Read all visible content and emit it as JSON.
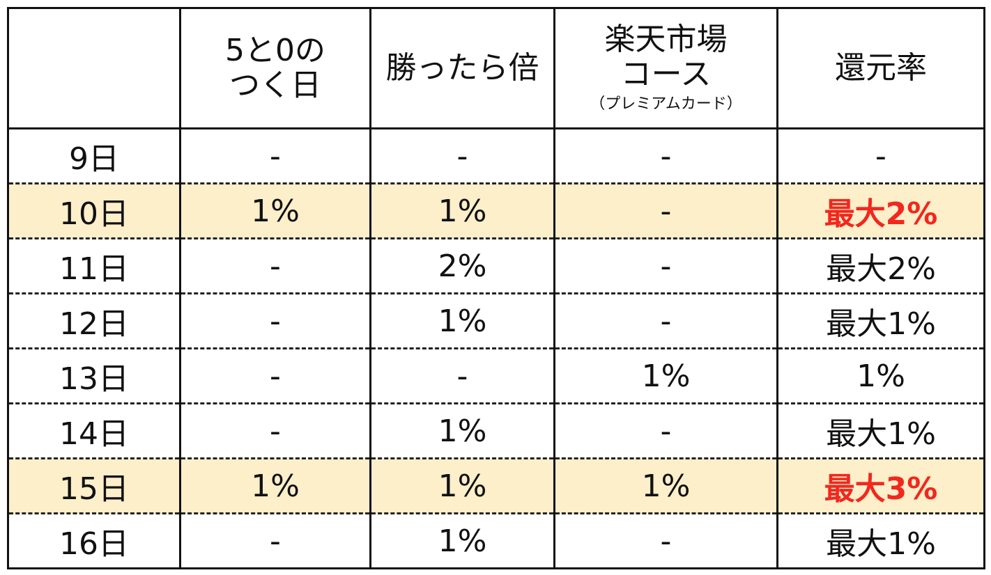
{
  "header": {
    "col0": "",
    "col1_line1": "5と0の",
    "col1_line2": "つく日",
    "col2": "勝ったら倍",
    "col3_line1": "楽天市場",
    "col3_line2": "コース",
    "col3_sub": "（プレミアムカード）",
    "col4": "還元率"
  },
  "highlight_color": "#fdefc9",
  "emphasis_color": "#f2271e",
  "rows": [
    {
      "day": "9日",
      "five_zero": "-",
      "win_double": "-",
      "ichiba_course": "-",
      "rate": "-",
      "highlight": false
    },
    {
      "day": "10日",
      "five_zero": "1%",
      "win_double": "1%",
      "ichiba_course": "-",
      "rate": "最大2%",
      "highlight": true
    },
    {
      "day": "11日",
      "five_zero": "-",
      "win_double": "2%",
      "ichiba_course": "-",
      "rate": "最大2%",
      "highlight": false
    },
    {
      "day": "12日",
      "five_zero": "-",
      "win_double": "1%",
      "ichiba_course": "-",
      "rate": "最大1%",
      "highlight": false
    },
    {
      "day": "13日",
      "five_zero": "-",
      "win_double": "-",
      "ichiba_course": "1%",
      "rate": "1%",
      "highlight": false
    },
    {
      "day": "14日",
      "five_zero": "-",
      "win_double": "1%",
      "ichiba_course": "-",
      "rate": "最大1%",
      "highlight": false
    },
    {
      "day": "15日",
      "five_zero": "1%",
      "win_double": "1%",
      "ichiba_course": "1%",
      "rate": "最大3%",
      "highlight": true
    },
    {
      "day": "16日",
      "five_zero": "-",
      "win_double": "1%",
      "ichiba_course": "-",
      "rate": "最大1%",
      "highlight": false
    }
  ]
}
